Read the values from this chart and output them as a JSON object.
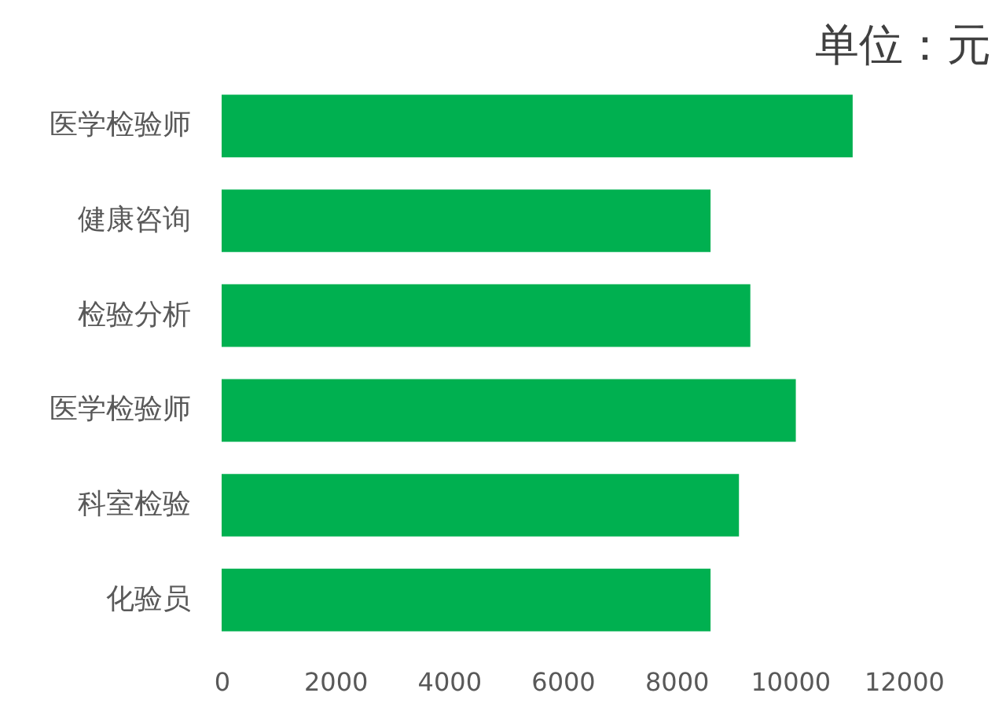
{
  "chart_data": {
    "type": "bar",
    "orientation": "horizontal",
    "title": "单位：元",
    "categories": [
      "医学检验师",
      "健康咨询",
      "检验分析",
      "医学检验师",
      "科室检验",
      "化验员"
    ],
    "values": [
      11100,
      8600,
      9300,
      10100,
      9100,
      8600
    ],
    "color": "#00b050",
    "xlim": [
      0,
      12000
    ],
    "xticks": [
      0,
      2000,
      4000,
      6000,
      8000,
      10000,
      12000
    ],
    "grid": false
  }
}
